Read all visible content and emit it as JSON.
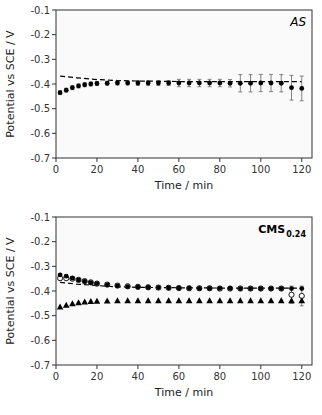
{
  "chart_data": [
    {
      "type": "scatter",
      "xlabel": "Time / min",
      "ylabel": "Potential vs SCE / V",
      "annotation": "AS",
      "xlim": [
        0,
        125
      ],
      "ylim": [
        -0.7,
        -0.1
      ],
      "xticks": [
        0,
        20,
        40,
        60,
        80,
        100,
        120
      ],
      "yticks": [
        -0.7,
        -0.6,
        -0.5,
        -0.4,
        -0.3,
        -0.2,
        -0.1
      ],
      "grid": false,
      "series": [
        {
          "type": "scatter",
          "marker": "circle",
          "color": "black",
          "x": [
            2,
            5,
            8,
            11,
            14,
            17,
            20,
            25,
            30,
            35,
            40,
            45,
            50,
            55,
            60,
            65,
            70,
            75,
            80,
            85,
            90,
            95,
            100,
            105,
            110,
            115,
            120
          ],
          "values": [
            -0.435,
            -0.425,
            -0.415,
            -0.408,
            -0.403,
            -0.4,
            -0.398,
            -0.397,
            -0.396,
            -0.396,
            -0.396,
            -0.396,
            -0.396,
            -0.396,
            -0.396,
            -0.396,
            -0.396,
            -0.396,
            -0.396,
            -0.397,
            -0.397,
            -0.397,
            -0.396,
            -0.396,
            -0.397,
            -0.415,
            -0.418
          ],
          "errors": [
            0.008,
            0.008,
            0.008,
            0.008,
            0.008,
            0.008,
            0.008,
            0.008,
            0.008,
            0.008,
            0.01,
            0.01,
            0.01,
            0.01,
            0.015,
            0.015,
            0.015,
            0.015,
            0.015,
            0.015,
            0.035,
            0.035,
            0.035,
            0.035,
            0.035,
            0.05,
            0.05
          ]
        },
        {
          "type": "line",
          "line_style": "dashed",
          "color": "black",
          "x": [
            2,
            10,
            20,
            30,
            40,
            60,
            80,
            100,
            120
          ],
          "values": [
            -0.368,
            -0.375,
            -0.382,
            -0.386,
            -0.388,
            -0.39,
            -0.39,
            -0.39,
            -0.39
          ]
        }
      ]
    },
    {
      "type": "scatter",
      "xlabel": "Time / min",
      "ylabel": "Potential vs SCE / V",
      "annotation": "CMS",
      "annotation_subscript": "0.24",
      "xlim": [
        0,
        125
      ],
      "ylim": [
        -0.7,
        -0.1
      ],
      "xticks": [
        0,
        20,
        40,
        60,
        80,
        100,
        120
      ],
      "yticks": [
        -0.7,
        -0.6,
        -0.5,
        -0.4,
        -0.3,
        -0.2,
        -0.1
      ],
      "grid": false,
      "series": [
        {
          "type": "scatter",
          "marker": "open-circle",
          "color": "black",
          "x": [
            2,
            5,
            8,
            11,
            14,
            17,
            20,
            25,
            30,
            35,
            40,
            45,
            50,
            55,
            60,
            65,
            70,
            75,
            80,
            85,
            90,
            95,
            100,
            105,
            110,
            115,
            120
          ],
          "values": [
            -0.348,
            -0.348,
            -0.35,
            -0.355,
            -0.36,
            -0.365,
            -0.37,
            -0.374,
            -0.378,
            -0.381,
            -0.383,
            -0.385,
            -0.386,
            -0.387,
            -0.388,
            -0.389,
            -0.389,
            -0.389,
            -0.39,
            -0.39,
            -0.39,
            -0.39,
            -0.39,
            -0.39,
            -0.39,
            -0.415,
            -0.42
          ],
          "errors": [
            0.008,
            0.008,
            0.008,
            0.008,
            0.008,
            0.008,
            0.008,
            0.008,
            0.008,
            0.008,
            0.008,
            0.008,
            0.008,
            0.008,
            0.008,
            0.008,
            0.008,
            0.008,
            0.008,
            0.008,
            0.008,
            0.008,
            0.008,
            0.008,
            0.008,
            0.035,
            0.04
          ]
        },
        {
          "type": "scatter",
          "marker": "circle",
          "color": "black",
          "x": [
            2,
            5,
            8,
            11,
            14,
            17,
            20,
            25,
            30,
            35,
            40,
            45,
            50,
            55,
            60,
            65,
            70,
            75,
            80,
            85,
            90,
            95,
            100,
            105,
            110,
            115,
            120
          ],
          "values": [
            -0.335,
            -0.34,
            -0.348,
            -0.355,
            -0.361,
            -0.366,
            -0.37,
            -0.375,
            -0.379,
            -0.382,
            -0.384,
            -0.385,
            -0.386,
            -0.387,
            -0.388,
            -0.388,
            -0.389,
            -0.389,
            -0.389,
            -0.389,
            -0.39,
            -0.39,
            -0.39,
            -0.39,
            -0.39,
            -0.39,
            -0.39
          ]
        },
        {
          "type": "scatter",
          "marker": "triangle",
          "color": "black",
          "x": [
            2,
            5,
            8,
            11,
            14,
            17,
            20,
            25,
            30,
            35,
            40,
            45,
            50,
            55,
            60,
            65,
            70,
            75,
            80,
            85,
            90,
            95,
            100,
            105,
            110,
            115,
            120
          ],
          "values": [
            -0.465,
            -0.458,
            -0.452,
            -0.448,
            -0.445,
            -0.443,
            -0.442,
            -0.441,
            -0.44,
            -0.44,
            -0.44,
            -0.44,
            -0.44,
            -0.44,
            -0.44,
            -0.44,
            -0.44,
            -0.44,
            -0.44,
            -0.44,
            -0.44,
            -0.44,
            -0.44,
            -0.44,
            -0.44,
            -0.44,
            -0.44
          ]
        },
        {
          "type": "line",
          "line_style": "dashed",
          "color": "black",
          "x": [
            2,
            10,
            20,
            30,
            40,
            60,
            80,
            100,
            120
          ],
          "values": [
            -0.365,
            -0.372,
            -0.378,
            -0.383,
            -0.385,
            -0.387,
            -0.388,
            -0.388,
            -0.388
          ]
        }
      ]
    }
  ]
}
